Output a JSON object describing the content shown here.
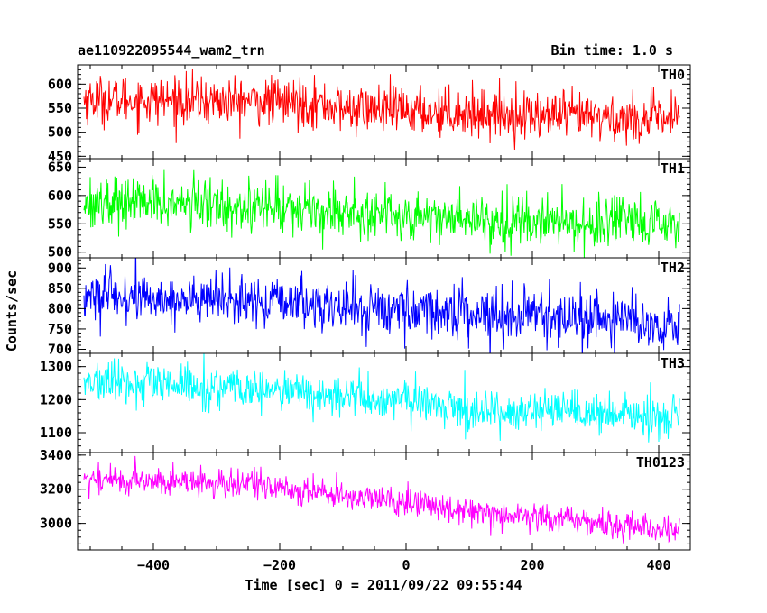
{
  "chart_data": {
    "type": "line",
    "title_left": "ae110922095544_wam2_trn",
    "title_right": "Bin time: 1.0 s",
    "xlabel": "Time [sec] 0 = 2011/09/22 09:55:44",
    "ylabel": "Counts/sec",
    "xlim": [
      -520,
      450
    ],
    "data_x_range": [
      -510,
      433
    ],
    "xticks": [
      -400,
      -200,
      0,
      200,
      400
    ],
    "grid": false,
    "panels": [
      {
        "name": "TH0",
        "color": "#ff0000",
        "ylim": [
          445,
          640
        ],
        "yticks": [
          450,
          500,
          550,
          600
        ],
        "trend_start": 568,
        "trend_end": 525,
        "noise_amplitude": 42,
        "trend_points": [
          [
            -510,
            568
          ],
          [
            -150,
            562
          ],
          [
            -100,
            548
          ],
          [
            0,
            545
          ],
          [
            200,
            535
          ],
          [
            433,
            525
          ]
        ]
      },
      {
        "name": "TH1",
        "color": "#00ff00",
        "ylim": [
          490,
          665
        ],
        "yticks": [
          500,
          550,
          600,
          650
        ],
        "trend_start": 590,
        "trend_end": 545,
        "noise_amplitude": 38,
        "trend_points": [
          [
            -510,
            590
          ],
          [
            -200,
            580
          ],
          [
            0,
            565
          ],
          [
            200,
            555
          ],
          [
            433,
            545
          ]
        ]
      },
      {
        "name": "TH2",
        "color": "#0000ff",
        "ylim": [
          690,
          925
        ],
        "yticks": [
          700,
          750,
          800,
          850,
          900
        ],
        "trend_start": 830,
        "trend_end": 760,
        "noise_amplitude": 52,
        "trend_points": [
          [
            -510,
            830
          ],
          [
            -200,
            815
          ],
          [
            -60,
            800
          ],
          [
            200,
            785
          ],
          [
            433,
            760
          ]
        ]
      },
      {
        "name": "TH3",
        "color": "#00ffff",
        "ylim": [
          1040,
          1340
        ],
        "yticks": [
          1100,
          1200,
          1300
        ],
        "trend_start": 1255,
        "trend_end": 1145,
        "noise_amplitude": 52,
        "trend_points": [
          [
            -510,
            1255
          ],
          [
            -200,
            1225
          ],
          [
            0,
            1195
          ],
          [
            100,
            1170
          ],
          [
            433,
            1145
          ]
        ]
      },
      {
        "name": "TH0123",
        "color": "#ff00ff",
        "ylim": [
          2845,
          3415
        ],
        "yticks": [
          3000,
          3200,
          3400
        ],
        "trend_start": 3260,
        "trend_end": 2960,
        "noise_amplitude": 70,
        "trend_points": [
          [
            -510,
            3260
          ],
          [
            -250,
            3230
          ],
          [
            0,
            3120
          ],
          [
            200,
            3040
          ],
          [
            433,
            2960
          ]
        ]
      }
    ]
  }
}
